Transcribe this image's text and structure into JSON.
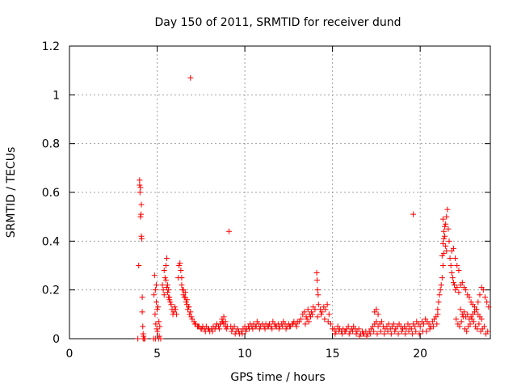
{
  "chart_data": {
    "type": "scatter",
    "title": "Day 150 of 2011, SRMTID for receiver dund",
    "xlabel": "GPS time / hours",
    "ylabel": "SRMTID / TECUs",
    "xlim": [
      0,
      24
    ],
    "ylim": [
      0,
      1.2
    ],
    "xticks": [
      0,
      5,
      10,
      15,
      20
    ],
    "yticks": [
      0,
      0.2,
      0.4,
      0.6,
      0.8,
      1,
      1.2
    ],
    "xtick_labels": [
      "0",
      "5",
      "10",
      "15",
      "20"
    ],
    "ytick_labels": [
      "0",
      "0.2",
      "0.4",
      "0.6",
      "0.8",
      "1",
      "1.2"
    ],
    "grid": true,
    "marker": "+",
    "series": [
      {
        "name": "SRMTID",
        "color": "#ff0000",
        "x": [
          3.9,
          3.95,
          4.0,
          4.0,
          4.02,
          4.05,
          4.05,
          4.08,
          4.1,
          4.1,
          4.12,
          4.15,
          4.15,
          4.18,
          4.2,
          4.2,
          4.22,
          4.25,
          4.3,
          4.8,
          4.85,
          4.9,
          4.95,
          5.0,
          5.05,
          5.1,
          5.15,
          5.2,
          4.82,
          4.88,
          4.92,
          4.98,
          5.02,
          5.08,
          5.12,
          4.9,
          4.95,
          5.3,
          5.35,
          5.4,
          5.45,
          5.5,
          5.55,
          5.6,
          5.65,
          5.7,
          5.75,
          5.8,
          5.85,
          5.9,
          5.95,
          6.0,
          6.05,
          6.1,
          5.4,
          5.5,
          5.6,
          5.7,
          5.55,
          5.65,
          6.2,
          6.25,
          6.3,
          6.35,
          6.4,
          6.45,
          6.5,
          6.55,
          6.6,
          6.65,
          6.7,
          6.75,
          6.8,
          6.85,
          6.9,
          6.95,
          7.0,
          6.4,
          6.5,
          6.6,
          6.7,
          6.8,
          6.9,
          7.1,
          7.2,
          7.3,
          7.4,
          7.5,
          7.6,
          7.7,
          7.8,
          7.9,
          8.0,
          8.1,
          8.2,
          8.3,
          8.4,
          8.5,
          8.6,
          8.7,
          8.8,
          8.9,
          9.0,
          7.15,
          7.35,
          7.55,
          7.75,
          7.95,
          8.15,
          8.35,
          8.55,
          8.75,
          8.95,
          8.6,
          8.7,
          8.8,
          8.9,
          9.1,
          9.2,
          9.3,
          9.4,
          9.5,
          9.6,
          9.7,
          9.8,
          9.9,
          10.0,
          10.1,
          10.2,
          10.3,
          10.4,
          10.5,
          10.6,
          10.7,
          10.8,
          10.9,
          11.0,
          9.25,
          9.45,
          9.65,
          9.85,
          10.05,
          10.25,
          10.45,
          10.65,
          10.85,
          11.1,
          11.2,
          11.3,
          11.4,
          11.5,
          11.6,
          11.7,
          11.8,
          11.9,
          12.0,
          12.1,
          12.2,
          12.3,
          12.4,
          12.5,
          12.6,
          12.7,
          12.8,
          12.9,
          13.0,
          11.15,
          11.35,
          11.55,
          11.75,
          11.95,
          12.15,
          12.35,
          12.55,
          12.75,
          12.95,
          13.1,
          13.2,
          13.3,
          13.4,
          13.5,
          13.6,
          13.7,
          13.8,
          13.9,
          14.0,
          13.45,
          13.55,
          13.65,
          13.75,
          13.85,
          14.1,
          14.12,
          14.15,
          14.18,
          14.2,
          14.3,
          14.4,
          14.5,
          14.6,
          14.7,
          14.8,
          14.9,
          15.0,
          14.15,
          14.35,
          14.55,
          14.75,
          15.1,
          15.2,
          15.3,
          15.4,
          15.5,
          15.6,
          15.7,
          15.8,
          15.9,
          16.0,
          16.1,
          16.2,
          16.3,
          16.4,
          16.5,
          16.6,
          16.7,
          16.8,
          16.9,
          17.0,
          15.15,
          15.35,
          15.55,
          15.75,
          15.95,
          16.15,
          16.35,
          16.55,
          16.75,
          16.95,
          17.1,
          17.2,
          17.3,
          17.4,
          17.5,
          17.6,
          17.7,
          17.8,
          17.9,
          18.0,
          18.1,
          18.2,
          18.3,
          18.4,
          18.5,
          18.6,
          18.7,
          18.8,
          18.9,
          19.0,
          17.15,
          17.35,
          17.55,
          17.75,
          17.95,
          18.15,
          18.35,
          18.55,
          18.75,
          18.95,
          17.4,
          17.5,
          17.6,
          19.1,
          19.2,
          19.3,
          19.4,
          19.5,
          19.6,
          19.7,
          19.8,
          19.9,
          20.0,
          20.1,
          20.2,
          20.3,
          20.4,
          20.5,
          20.6,
          20.7,
          20.8,
          20.9,
          21.0,
          19.15,
          19.35,
          19.55,
          19.75,
          19.95,
          20.15,
          20.35,
          20.55,
          20.75,
          20.95,
          19.6,
          21.0,
          21.05,
          21.1,
          21.15,
          21.2,
          21.25,
          21.3,
          21.35,
          21.4,
          21.45,
          21.5,
          21.55,
          21.6,
          21.65,
          21.7,
          21.75,
          21.8,
          21.85,
          21.9,
          21.95,
          21.3,
          21.35,
          21.4,
          21.3,
          21.35,
          21.25,
          21.45,
          21.5,
          22.0,
          22.1,
          22.2,
          22.3,
          22.4,
          22.5,
          22.6,
          22.7,
          22.8,
          22.9,
          23.0,
          23.1,
          23.2,
          23.3,
          23.4,
          23.5,
          23.6,
          23.7,
          23.8,
          23.9,
          22.05,
          22.15,
          22.25,
          22.35,
          22.45,
          22.55,
          22.65,
          22.75,
          22.85,
          22.95,
          23.05,
          23.15,
          23.25,
          23.35,
          23.45,
          23.55,
          23.65,
          23.75,
          23.85,
          21.8,
          21.9,
          22.0,
          22.1,
          22.2,
          22.3,
          22.4,
          22.5,
          22.6,
          22.7,
          22.8,
          22.9,
          23.0,
          23.1,
          23.2,
          23.3,
          23.4,
          23.5
        ],
        "y": [
          0.0,
          0.3,
          0.65,
          0.63,
          0.6,
          0.62,
          0.5,
          0.51,
          0.55,
          0.42,
          0.41,
          0.17,
          0.11,
          0.05,
          0.02,
          0.0,
          0.01,
          0.0,
          0.0,
          0.0,
          0.26,
          0.2,
          0.22,
          0.12,
          0.13,
          0.07,
          0.05,
          0.0,
          0.18,
          0.1,
          0.06,
          0.04,
          0.03,
          0.0,
          0.01,
          0.0,
          0.15,
          0.22,
          0.2,
          0.18,
          0.25,
          0.3,
          0.33,
          0.22,
          0.2,
          0.17,
          0.15,
          0.14,
          0.12,
          0.1,
          0.11,
          0.13,
          0.12,
          0.1,
          0.28,
          0.24,
          0.19,
          0.16,
          0.21,
          0.17,
          0.25,
          0.3,
          0.31,
          0.28,
          0.25,
          0.2,
          0.18,
          0.17,
          0.19,
          0.15,
          0.14,
          0.12,
          0.13,
          0.1,
          0.11,
          0.09,
          0.08,
          0.22,
          0.2,
          0.17,
          0.16,
          0.13,
          1.07,
          0.07,
          0.06,
          0.05,
          0.05,
          0.04,
          0.05,
          0.04,
          0.05,
          0.04,
          0.03,
          0.04,
          0.05,
          0.04,
          0.06,
          0.05,
          0.06,
          0.08,
          0.09,
          0.07,
          0.05,
          0.06,
          0.05,
          0.04,
          0.03,
          0.04,
          0.03,
          0.05,
          0.04,
          0.07,
          0.04,
          0.06,
          0.07,
          0.06,
          0.05,
          0.44,
          0.05,
          0.04,
          0.05,
          0.03,
          0.04,
          0.02,
          0.03,
          0.04,
          0.05,
          0.04,
          0.05,
          0.06,
          0.05,
          0.06,
          0.05,
          0.07,
          0.06,
          0.05,
          0.06,
          0.03,
          0.02,
          0.03,
          0.02,
          0.03,
          0.04,
          0.04,
          0.05,
          0.04,
          0.05,
          0.06,
          0.05,
          0.06,
          0.05,
          0.07,
          0.06,
          0.05,
          0.06,
          0.05,
          0.06,
          0.07,
          0.06,
          0.05,
          0.06,
          0.05,
          0.06,
          0.07,
          0.06,
          0.07,
          0.04,
          0.05,
          0.04,
          0.05,
          0.04,
          0.05,
          0.04,
          0.05,
          0.06,
          0.05,
          0.07,
          0.08,
          0.1,
          0.11,
          0.09,
          0.12,
          0.1,
          0.11,
          0.13,
          0.12,
          0.06,
          0.08,
          0.07,
          0.09,
          0.1,
          0.27,
          0.24,
          0.2,
          0.18,
          0.14,
          0.12,
          0.11,
          0.13,
          0.12,
          0.14,
          0.1,
          0.06,
          0.04,
          0.09,
          0.1,
          0.08,
          0.07,
          0.04,
          0.03,
          0.05,
          0.04,
          0.03,
          0.04,
          0.03,
          0.04,
          0.05,
          0.03,
          0.04,
          0.05,
          0.04,
          0.03,
          0.04,
          0.02,
          0.03,
          0.02,
          0.03,
          0.02,
          0.02,
          0.03,
          0.02,
          0.03,
          0.02,
          0.03,
          0.02,
          0.01,
          0.02,
          0.01,
          0.03,
          0.04,
          0.05,
          0.06,
          0.07,
          0.05,
          0.06,
          0.07,
          0.05,
          0.04,
          0.05,
          0.06,
          0.04,
          0.05,
          0.06,
          0.04,
          0.05,
          0.06,
          0.05,
          0.04,
          0.02,
          0.03,
          0.02,
          0.03,
          0.02,
          0.03,
          0.02,
          0.03,
          0.02,
          0.03,
          0.11,
          0.12,
          0.1,
          0.05,
          0.04,
          0.06,
          0.05,
          0.04,
          0.06,
          0.05,
          0.07,
          0.06,
          0.05,
          0.07,
          0.06,
          0.08,
          0.07,
          0.06,
          0.05,
          0.07,
          0.08,
          0.09,
          0.1,
          0.02,
          0.03,
          0.02,
          0.03,
          0.02,
          0.03,
          0.03,
          0.04,
          0.05,
          0.06,
          0.51,
          0.12,
          0.15,
          0.18,
          0.2,
          0.22,
          0.25,
          0.3,
          0.35,
          0.42,
          0.47,
          0.5,
          0.53,
          0.45,
          0.4,
          0.33,
          0.3,
          0.27,
          0.25,
          0.23,
          0.22,
          0.39,
          0.41,
          0.46,
          0.49,
          0.44,
          0.34,
          0.38,
          0.36,
          0.2,
          0.21,
          0.19,
          0.22,
          0.23,
          0.21,
          0.2,
          0.18,
          0.17,
          0.15,
          0.14,
          0.13,
          0.12,
          0.15,
          0.18,
          0.21,
          0.2,
          0.17,
          0.15,
          0.13,
          0.08,
          0.06,
          0.05,
          0.07,
          0.09,
          0.04,
          0.03,
          0.05,
          0.06,
          0.08,
          0.07,
          0.05,
          0.04,
          0.06,
          0.03,
          0.04,
          0.05,
          0.02,
          0.03,
          0.36,
          0.37,
          0.33,
          0.3,
          0.28,
          0.12,
          0.1,
          0.11,
          0.09,
          0.1,
          0.08,
          0.09,
          0.1,
          0.11,
          0.12,
          0.1,
          0.09,
          0.08
        ]
      }
    ]
  }
}
